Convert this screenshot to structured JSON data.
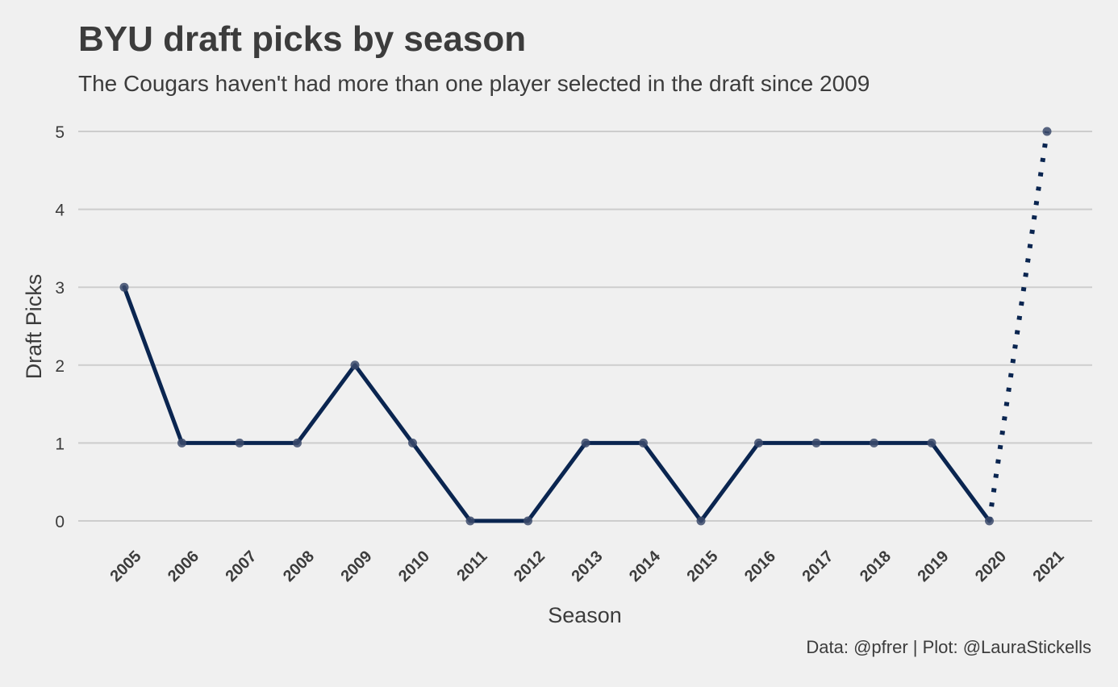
{
  "chart_data": {
    "type": "line",
    "title": "BYU draft picks by season",
    "subtitle": "The Cougars haven't had more than one player selected in the draft since 2009",
    "caption": "Data: @pfrer | Plot: @LauraStickells",
    "xlabel": "Season",
    "ylabel": "Draft Picks",
    "x": [
      2005,
      2006,
      2007,
      2008,
      2009,
      2010,
      2011,
      2012,
      2013,
      2014,
      2015,
      2016,
      2017,
      2018,
      2019,
      2020,
      2021
    ],
    "ylim": [
      0,
      5
    ],
    "yticks": [
      0,
      1,
      2,
      3,
      4,
      5
    ],
    "grid": true,
    "legend": "none",
    "series": [
      {
        "style": "solid",
        "x": [
          2005,
          2006,
          2007,
          2008,
          2009,
          2010,
          2011,
          2012,
          2013,
          2014,
          2015,
          2016,
          2017,
          2018,
          2019,
          2020
        ],
        "values": [
          3,
          1,
          1,
          1,
          2,
          1,
          0,
          0,
          1,
          1,
          0,
          1,
          1,
          1,
          1,
          0
        ]
      },
      {
        "style": "dotted",
        "x": [
          2020,
          2021
        ],
        "values": [
          0,
          5
        ]
      }
    ],
    "colors": {
      "line": "#0a2550",
      "point": "#3b4a6b",
      "grid": "#cdcdcd",
      "background": "#f0f0f0",
      "text": "#3c3c3c"
    }
  }
}
